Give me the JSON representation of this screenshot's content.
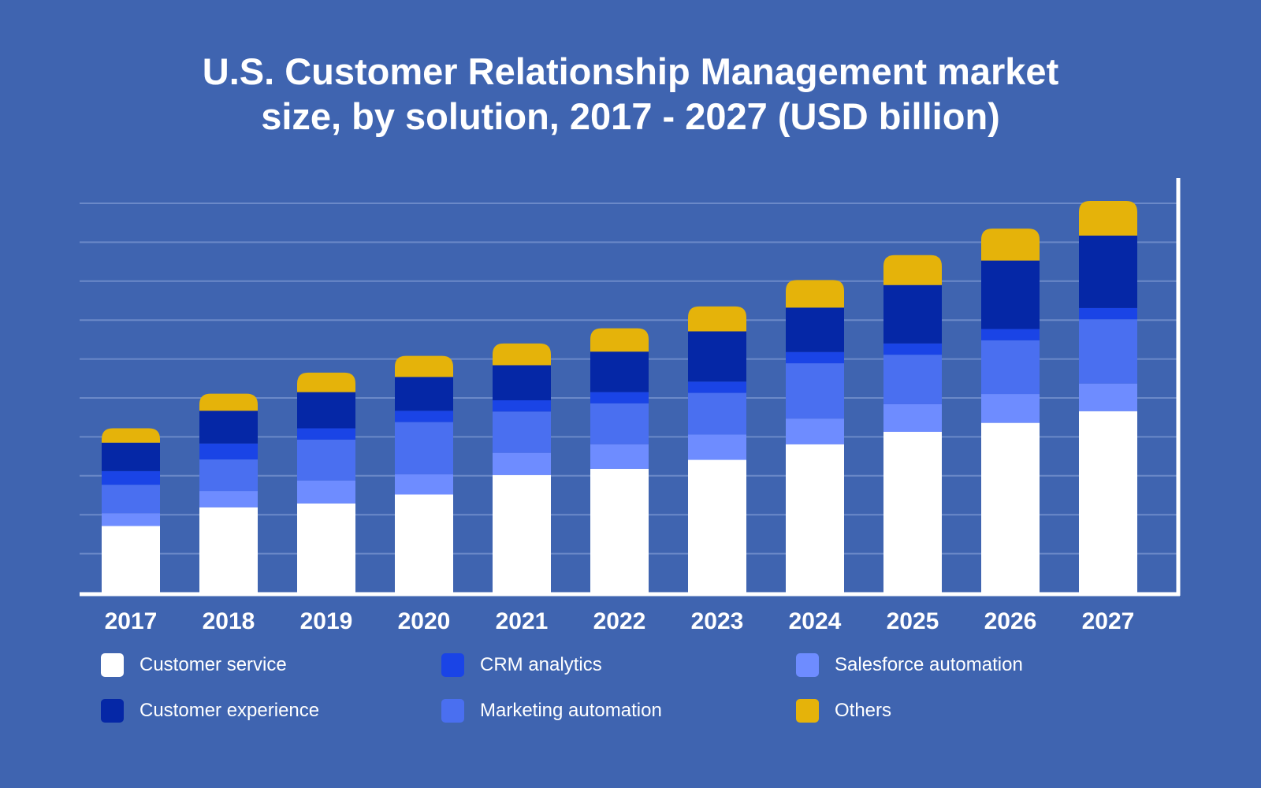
{
  "chart_data": {
    "type": "bar",
    "stacked": true,
    "title_lines": [
      "U.S. Customer Relationship Management market",
      "size, by solution, 2017 - 2027 (USD billion)"
    ],
    "categories": [
      "2017",
      "2018",
      "2019",
      "2020",
      "2021",
      "2022",
      "2023",
      "2024",
      "2025",
      "2026",
      "2027"
    ],
    "series": [
      {
        "name": "Customer service",
        "color": "#ffffff",
        "values": [
          17.1,
          21.9,
          22.9,
          25.2,
          30.2,
          31.8,
          34.1,
          38.1,
          41.3,
          43.6,
          46.6
        ]
      },
      {
        "name": "Salesforce automation",
        "color": "#6e8cff",
        "values": [
          3.3,
          4.2,
          5.9,
          5.2,
          5.7,
          6.3,
          6.5,
          6.6,
          7.1,
          7.4,
          7.1
        ]
      },
      {
        "name": "Marketing automation",
        "color": "#4a6ff0",
        "values": [
          7.3,
          8.1,
          10.5,
          13.4,
          10.6,
          10.5,
          10.7,
          14.2,
          12.7,
          13.8,
          16.5
        ]
      },
      {
        "name": "CRM analytics",
        "color": "#1a44e6",
        "values": [
          3.5,
          4.1,
          2.9,
          2.9,
          2.9,
          2.9,
          2.9,
          2.9,
          2.9,
          2.9,
          2.9
        ]
      },
      {
        "name": "Customer experience",
        "color": "#0527a6",
        "values": [
          7.3,
          8.4,
          9.3,
          8.7,
          9.0,
          10.4,
          12.9,
          11.4,
          15.0,
          17.6,
          18.6
        ]
      },
      {
        "name": "Others",
        "color": "#e5b30a",
        "values": [
          3.7,
          4.4,
          5.0,
          5.4,
          5.6,
          6.0,
          6.4,
          7.1,
          7.7,
          8.2,
          8.9
        ]
      }
    ],
    "legend_order": [
      "Customer service",
      "CRM analytics",
      "Salesforce automation",
      "Customer experience",
      "Marketing automation",
      "Others"
    ],
    "ylim": [
      0,
      100
    ],
    "gridlines": 10,
    "y_tick_labels_shown": false,
    "grid": true,
    "legend_position": "bottom",
    "colors": {
      "background": "#3f64b0",
      "gridline": "#6b89c8",
      "axis": "#ffffff"
    }
  }
}
